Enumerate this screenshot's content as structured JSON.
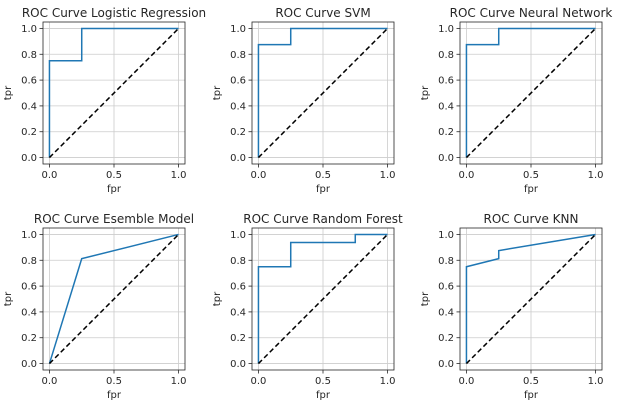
{
  "chart_data": [
    {
      "type": "line",
      "title": "ROC Curve Logistic Regression",
      "xlabel": "fpr",
      "ylabel": "tpr",
      "xlim": [
        -0.05,
        1.05
      ],
      "ylim": [
        -0.05,
        1.05
      ],
      "grid": true,
      "xticks": [
        0.0,
        0.5,
        1.0
      ],
      "xtick_labels": [
        "0.0",
        "0.5",
        "1.0"
      ],
      "yticks": [
        0.0,
        0.2,
        0.4,
        0.6,
        0.8,
        1.0
      ],
      "ytick_labels": [
        "0.0",
        "0.2",
        "0.4",
        "0.6",
        "0.8",
        "1.0"
      ],
      "series": [
        {
          "x": [
            0,
            0,
            0,
            0.25,
            0.25,
            1
          ],
          "y": [
            0,
            0.75,
            0.75,
            0.75,
            1.0,
            1.0
          ],
          "color": "#1f77b4",
          "style": "solid"
        },
        {
          "x": [
            0,
            1
          ],
          "y": [
            0,
            1
          ],
          "color": "#000000",
          "style": "dashed"
        }
      ]
    },
    {
      "type": "line",
      "title": "ROC Curve SVM",
      "xlabel": "fpr",
      "ylabel": "tpr",
      "xlim": [
        -0.05,
        1.05
      ],
      "ylim": [
        -0.05,
        1.05
      ],
      "grid": true,
      "xticks": [
        0.0,
        0.5,
        1.0
      ],
      "xtick_labels": [
        "0.0",
        "0.5",
        "1.0"
      ],
      "yticks": [
        0.0,
        0.2,
        0.4,
        0.6,
        0.8,
        1.0
      ],
      "ytick_labels": [
        "0.0",
        "0.2",
        "0.4",
        "0.6",
        "0.8",
        "1.0"
      ],
      "series": [
        {
          "x": [
            0,
            0,
            0.25,
            0.25,
            1
          ],
          "y": [
            0,
            0.875,
            0.875,
            1.0,
            1.0
          ],
          "color": "#1f77b4",
          "style": "solid"
        },
        {
          "x": [
            0,
            1
          ],
          "y": [
            0,
            1
          ],
          "color": "#000000",
          "style": "dashed"
        }
      ]
    },
    {
      "type": "line",
      "title": "ROC Curve Neural Network",
      "xlabel": "fpr",
      "ylabel": "tpr",
      "xlim": [
        -0.05,
        1.05
      ],
      "ylim": [
        -0.05,
        1.05
      ],
      "grid": true,
      "xticks": [
        0.0,
        0.5,
        1.0
      ],
      "xtick_labels": [
        "0.0",
        "0.5",
        "1.0"
      ],
      "yticks": [
        0.0,
        0.2,
        0.4,
        0.6,
        0.8,
        1.0
      ],
      "ytick_labels": [
        "0.0",
        "0.2",
        "0.4",
        "0.6",
        "0.8",
        "1.0"
      ],
      "series": [
        {
          "x": [
            0,
            0,
            0.25,
            0.25,
            1
          ],
          "y": [
            0,
            0.875,
            0.875,
            1.0,
            1.0
          ],
          "color": "#1f77b4",
          "style": "solid"
        },
        {
          "x": [
            0,
            1
          ],
          "y": [
            0,
            1
          ],
          "color": "#000000",
          "style": "dashed"
        }
      ]
    },
    {
      "type": "line",
      "title": "ROC Curve Esemble Model",
      "xlabel": "fpr",
      "ylabel": "tpr",
      "xlim": [
        -0.05,
        1.05
      ],
      "ylim": [
        -0.05,
        1.05
      ],
      "grid": true,
      "xticks": [
        0.0,
        0.5,
        1.0
      ],
      "xtick_labels": [
        "0.0",
        "0.5",
        "1.0"
      ],
      "yticks": [
        0.0,
        0.2,
        0.4,
        0.6,
        0.8,
        1.0
      ],
      "ytick_labels": [
        "0.0",
        "0.2",
        "0.4",
        "0.6",
        "0.8",
        "1.0"
      ],
      "series": [
        {
          "x": [
            0,
            0.25,
            1
          ],
          "y": [
            0,
            0.8125,
            1.0
          ],
          "color": "#1f77b4",
          "style": "solid"
        },
        {
          "x": [
            0,
            1
          ],
          "y": [
            0,
            1
          ],
          "color": "#000000",
          "style": "dashed"
        }
      ]
    },
    {
      "type": "line",
      "title": "ROC Curve Random Forest",
      "xlabel": "fpr",
      "ylabel": "tpr",
      "xlim": [
        -0.05,
        1.05
      ],
      "ylim": [
        -0.05,
        1.05
      ],
      "grid": true,
      "xticks": [
        0.0,
        0.5,
        1.0
      ],
      "xtick_labels": [
        "0.0",
        "0.5",
        "1.0"
      ],
      "yticks": [
        0.0,
        0.2,
        0.4,
        0.6,
        0.8,
        1.0
      ],
      "ytick_labels": [
        "0.0",
        "0.2",
        "0.4",
        "0.6",
        "0.8",
        "1.0"
      ],
      "series": [
        {
          "x": [
            0,
            0,
            0.25,
            0.25,
            0.75,
            0.75,
            1
          ],
          "y": [
            0,
            0.75,
            0.75,
            0.9375,
            0.9375,
            1.0,
            1.0
          ],
          "color": "#1f77b4",
          "style": "solid"
        },
        {
          "x": [
            0,
            1
          ],
          "y": [
            0,
            1
          ],
          "color": "#000000",
          "style": "dashed"
        }
      ]
    },
    {
      "type": "line",
      "title": "ROC Curve KNN",
      "xlabel": "fpr",
      "ylabel": "tpr",
      "xlim": [
        -0.05,
        1.05
      ],
      "ylim": [
        -0.05,
        1.05
      ],
      "grid": true,
      "xticks": [
        0.0,
        0.5,
        1.0
      ],
      "xtick_labels": [
        "0.0",
        "0.5",
        "1.0"
      ],
      "yticks": [
        0.0,
        0.2,
        0.4,
        0.6,
        0.8,
        1.0
      ],
      "ytick_labels": [
        "0.0",
        "0.2",
        "0.4",
        "0.6",
        "0.8",
        "1.0"
      ],
      "series": [
        {
          "x": [
            0,
            0,
            0.25,
            0.25,
            1
          ],
          "y": [
            0,
            0.75,
            0.8125,
            0.875,
            1.0
          ],
          "color": "#1f77b4",
          "style": "solid"
        },
        {
          "x": [
            0,
            1
          ],
          "y": [
            0,
            1
          ],
          "color": "#000000",
          "style": "dashed"
        }
      ]
    }
  ]
}
